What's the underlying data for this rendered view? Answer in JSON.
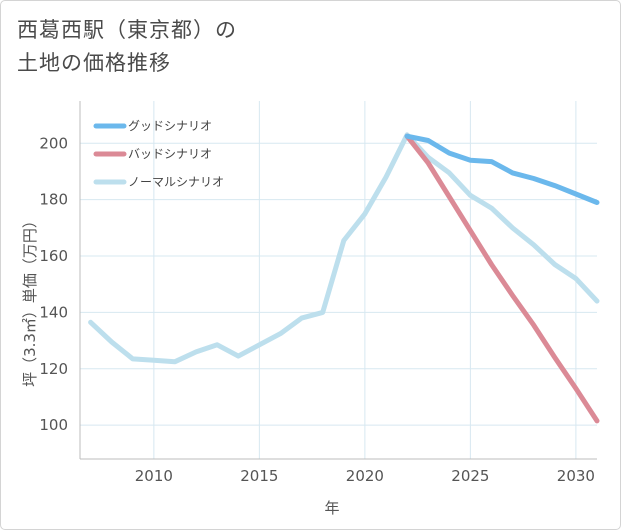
{
  "page": {
    "title_line1": "西葛西駅（東京都）の",
    "title_line2": "土地の価格推移"
  },
  "colors": {
    "good": "#6bb8ec",
    "bad": "#db8a96",
    "normal": "#bddfed",
    "grid": "#d7e8f1",
    "axis": "#555555"
  },
  "chart_data": {
    "type": "line",
    "xlabel": "年",
    "ylabel": "坪（3.3㎡）単価（万円）",
    "xlim": [
      2006.5,
      2031
    ],
    "ylim": [
      88,
      215
    ],
    "xticks": [
      2010,
      2015,
      2020,
      2025,
      2030
    ],
    "yticks": [
      100,
      120,
      140,
      160,
      180,
      200
    ],
    "series": [
      {
        "key": "good",
        "name": "グッドシナリオ",
        "x": [
          2022,
          2023,
          2024,
          2025,
          2026,
          2027,
          2028,
          2029,
          2030,
          2031
        ],
        "y": [
          202.5,
          201,
          196.5,
          194,
          193.5,
          189.5,
          187.5,
          185,
          182,
          179
        ]
      },
      {
        "key": "bad",
        "name": "バッドシナリオ",
        "x": [
          2022,
          2023,
          2024,
          2025,
          2026,
          2027,
          2028,
          2029,
          2030,
          2031
        ],
        "y": [
          202.5,
          193,
          181,
          169,
          157,
          146,
          135.5,
          124,
          113,
          101.5
        ]
      },
      {
        "key": "normal",
        "name": "ノーマルシナリオ",
        "x": [
          2007,
          2008,
          2009,
          2010,
          2011,
          2012,
          2013,
          2014,
          2015,
          2016,
          2017,
          2018,
          2019,
          2020,
          2021,
          2022,
          2023,
          2024,
          2025,
          2026,
          2027,
          2028,
          2029,
          2030,
          2031
        ],
        "y": [
          136.5,
          129.5,
          123.5,
          123,
          122.5,
          126,
          128.5,
          124.5,
          128.5,
          132.5,
          138,
          140,
          165.5,
          175,
          188,
          203,
          195,
          189.5,
          181.5,
          177,
          170,
          164,
          157,
          152,
          144
        ]
      }
    ]
  }
}
